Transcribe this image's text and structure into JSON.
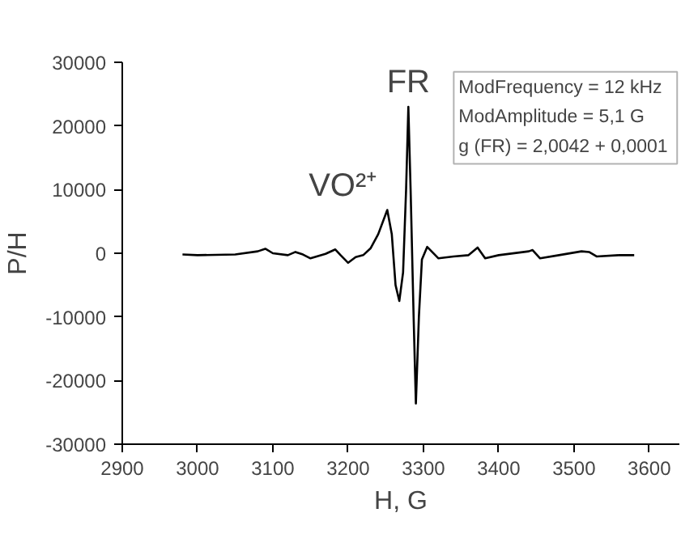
{
  "chart_data": {
    "type": "line",
    "xlabel": "H, G",
    "ylabel": "P/H",
    "x": [
      2980,
      3000,
      3050,
      3080,
      3090,
      3100,
      3120,
      3130,
      3140,
      3150,
      3170,
      3183,
      3190,
      3200,
      3210,
      3220,
      3230,
      3240,
      3252,
      3258,
      3263,
      3268,
      3273,
      3277,
      3280,
      3283,
      3287,
      3290,
      3294,
      3298,
      3305,
      3315,
      3320,
      3340,
      3360,
      3372,
      3382,
      3400,
      3440,
      3445,
      3455,
      3480,
      3510,
      3520,
      3530,
      3560,
      3580
    ],
    "series": [
      {
        "color": "#000000",
        "values": [
          -200,
          -300,
          -200,
          300,
          700,
          0,
          -300,
          200,
          -200,
          -800,
          -100,
          600,
          -300,
          -1500,
          -600,
          -300,
          800,
          3000,
          6800,
          3000,
          -5000,
          -7500,
          -3000,
          10000,
          23000,
          10000,
          -10000,
          -23600,
          -10000,
          -1000,
          1000,
          -200,
          -800,
          -500,
          -300,
          900,
          -800,
          -300,
          300,
          500,
          -800,
          -300,
          300,
          200,
          -500,
          -300,
          -300
        ]
      }
    ],
    "xlim": [
      2900,
      3640
    ],
    "ylim": [
      -30000,
      30000
    ],
    "xticks": [
      2900,
      3000,
      3100,
      3200,
      3300,
      3400,
      3500,
      3600
    ],
    "yticks": [
      -30000,
      -20000,
      -10000,
      0,
      10000,
      20000,
      30000
    ],
    "grid": false,
    "marker": "none",
    "line_style": "solid",
    "annotations": [
      {
        "text": "FR",
        "x": 3280,
        "y": 23000
      },
      {
        "text": "VO²⁺",
        "x": 3252,
        "y": 6800
      },
      "ModFrequency = 12 kHz",
      "ModAmplitude = 5,1 G",
      "g (FR) = 2,0042  + 0,0001"
    ]
  }
}
